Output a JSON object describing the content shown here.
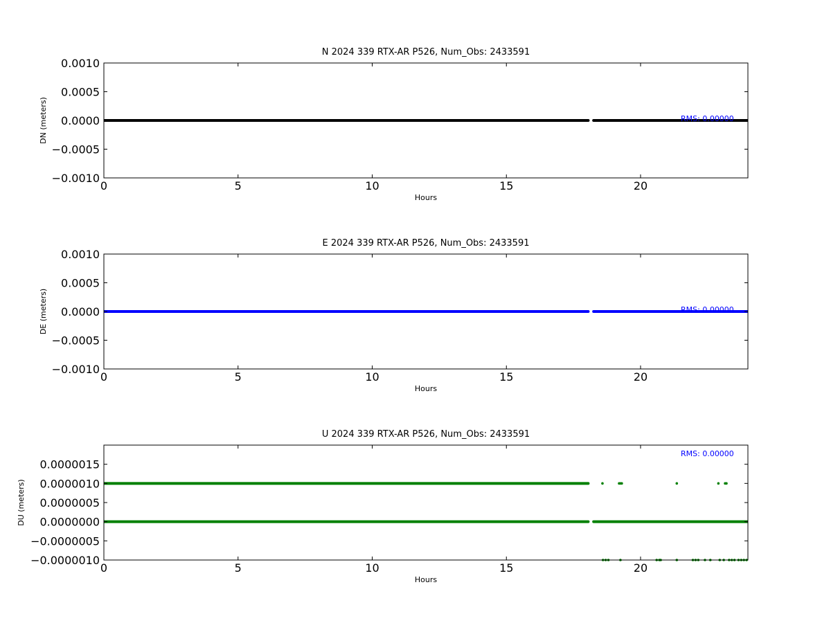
{
  "chart_data": [
    {
      "type": "scatter",
      "title": "N 2024 339 RTX-AR  P526, Num_Obs: 2433591",
      "xlabel": "Hours",
      "ylabel": "DN (meters)",
      "xlim": [
        0,
        24
      ],
      "ylim": [
        -0.001,
        0.001
      ],
      "xticks": [
        0,
        5,
        10,
        15,
        20
      ],
      "xtick_labels": [
        "0",
        "5",
        "10",
        "15",
        "20"
      ],
      "yticks": [
        0.001,
        0.0005,
        0,
        -0.0005,
        -0.001
      ],
      "ytick_labels": [
        "0.0010",
        "0.0005",
        "0.0000",
        "−0.0005",
        "−0.0010"
      ],
      "grid": false,
      "color": "#000000",
      "series": [
        {
          "segments": [
            {
              "x": [
                0,
                18.05
              ],
              "y": 0
            },
            {
              "x": [
                18.25,
                24
              ],
              "y": 0
            }
          ]
        }
      ],
      "annotation": "RMS:  0.00000"
    },
    {
      "type": "scatter",
      "title": "E 2024 339 RTX-AR  P526, Num_Obs: 2433591",
      "xlabel": "Hours",
      "ylabel": "DE (meters)",
      "xlim": [
        0,
        24
      ],
      "ylim": [
        -0.001,
        0.001
      ],
      "xticks": [
        0,
        5,
        10,
        15,
        20
      ],
      "xtick_labels": [
        "0",
        "5",
        "10",
        "15",
        "20"
      ],
      "yticks": [
        0.001,
        0.0005,
        0,
        -0.0005,
        -0.001
      ],
      "ytick_labels": [
        "0.0010",
        "0.0005",
        "0.0000",
        "−0.0005",
        "−0.0010"
      ],
      "grid": false,
      "color": "#0000ff",
      "series": [
        {
          "segments": [
            {
              "x": [
                0,
                18.05
              ],
              "y": 0
            },
            {
              "x": [
                18.25,
                24
              ],
              "y": 0
            }
          ]
        }
      ],
      "annotation": "RMS:  0.00000"
    },
    {
      "type": "scatter",
      "title": "U 2024 339 RTX-AR  P526, Num_Obs: 2433591",
      "xlabel": "Hours",
      "ylabel": "DU (meters)",
      "xlim": [
        0,
        24
      ],
      "ylim": [
        -1e-06,
        2e-06
      ],
      "xticks": [
        0,
        5,
        10,
        15,
        20
      ],
      "xtick_labels": [
        "0",
        "5",
        "10",
        "15",
        "20"
      ],
      "yticks": [
        1.5e-06,
        1e-06,
        5e-07,
        0,
        -5e-07,
        -1e-06
      ],
      "ytick_labels": [
        "0.0000015",
        "0.0000010",
        "0.0000005",
        "0.0000000",
        "−0.0000005",
        "−0.0000010"
      ],
      "grid": false,
      "color": "#008000",
      "series": [
        {
          "segments": [
            {
              "x": [
                0,
                18.05
              ],
              "y": 1e-06
            },
            {
              "x": [
                0,
                18.05
              ],
              "y": 0
            },
            {
              "x": [
                18.25,
                24
              ],
              "y": 0
            }
          ],
          "points": {
            "x": [
              18.58,
              19.2,
              19.25,
              19.3,
              21.35,
              22.9,
              23.15,
              23.2,
              18.6,
              18.7,
              18.8,
              19.25,
              20.6,
              20.7,
              20.75,
              21.35,
              21.95,
              22.05,
              22.15,
              22.4,
              22.6,
              22.95,
              23.1,
              23.3,
              23.4,
              23.5,
              23.65,
              23.75,
              23.85,
              23.95
            ],
            "y": [
              1e-06,
              1e-06,
              1e-06,
              1e-06,
              1e-06,
              1e-06,
              1e-06,
              1e-06,
              -1e-06,
              -1e-06,
              -1e-06,
              -1e-06,
              -1e-06,
              -1e-06,
              -1e-06,
              -1e-06,
              -1e-06,
              -1e-06,
              -1e-06,
              -1e-06,
              -1e-06,
              -1e-06,
              -1e-06,
              -1e-06,
              -1e-06,
              -1e-06,
              -1e-06,
              -1e-06,
              -1e-06,
              -1e-06
            ]
          }
        }
      ],
      "annotation": "RMS:  0.00000"
    }
  ]
}
